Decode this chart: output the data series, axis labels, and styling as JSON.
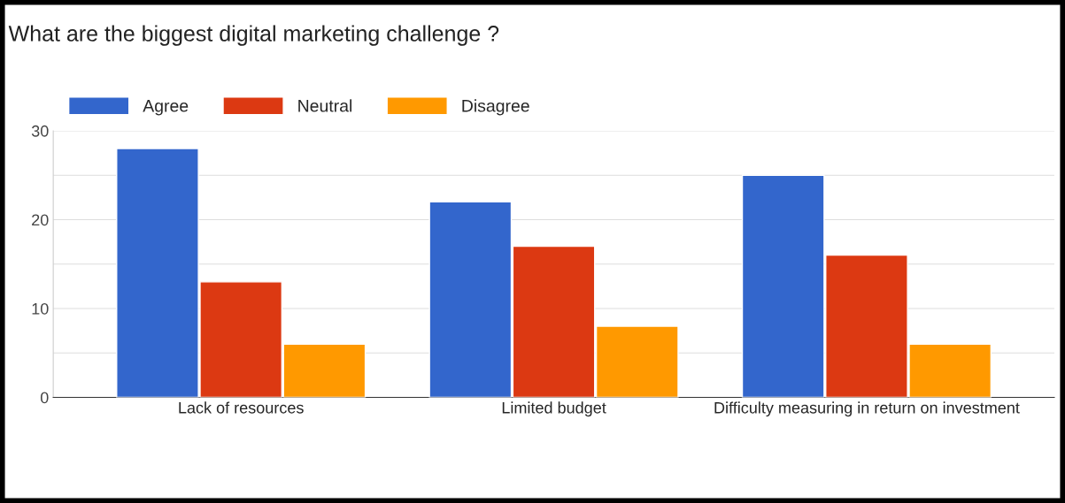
{
  "chart_data": {
    "type": "bar",
    "title": "What are the biggest digital marketing challenge ?",
    "categories": [
      "Lack of resources",
      "Limited budget",
      "Difficulty measuring in return on investment"
    ],
    "series": [
      {
        "name": "Agree",
        "color": "#3366cc",
        "values": [
          28,
          22,
          25
        ]
      },
      {
        "name": "Neutral",
        "color": "#dc3912",
        "values": [
          13,
          17,
          16
        ]
      },
      {
        "name": "Disagree",
        "color": "#ff9900",
        "values": [
          6,
          8,
          6
        ]
      }
    ],
    "ylim": [
      0,
      30
    ],
    "yticks": [
      0,
      {
        "value": 5,
        "label": null
      },
      10,
      {
        "value": 15,
        "label": null
      },
      20,
      {
        "value": 25,
        "label": null
      },
      30
    ],
    "grid": "y",
    "legend": "top left"
  }
}
